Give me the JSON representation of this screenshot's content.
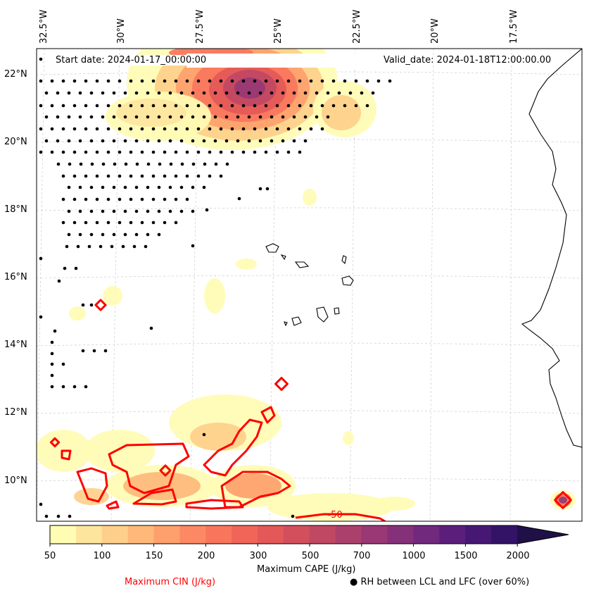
{
  "map": {
    "start_date": "Start date: 2024-01-17_00:00:00",
    "valid_date": "Valid_date: 2024-01-18T12:00:00.00",
    "lon_ticks": [
      "32.5°W",
      "30°W",
      "27.5°W",
      "25°W",
      "22.5°W",
      "20°W",
      "17.5°W"
    ],
    "lat_ticks": [
      "22°N",
      "20°N",
      "18°N",
      "16°N",
      "14°N",
      "12°N",
      "10°N"
    ],
    "contour_label": "-50",
    "colors": {
      "cin_contour": "#ff0000",
      "coastline": "#000000",
      "gridline": "#cccccc"
    }
  },
  "colorbar": {
    "title": "Maximum CAPE (J/kg)",
    "tick_labels": [
      "50",
      "100",
      "150",
      "200",
      "300",
      "500",
      "700",
      "1000",
      "1500",
      "2000"
    ],
    "colors": [
      "#fffcb4",
      "#fee59e",
      "#fecf8a",
      "#feb879",
      "#fea06d",
      "#fc8963",
      "#f8765c",
      "#f06558",
      "#e35858",
      "#d24f5c",
      "#c04863",
      "#ac406c",
      "#983874",
      "#853179",
      "#71297d",
      "#5b1f7b",
      "#461873",
      "#321366",
      "#1f1048"
    ]
  },
  "legend": {
    "cin_label": "Maximum CIN (J/kg)",
    "rh_label": "RH between LCL and LFC (over 60%)",
    "rh_marker": "●"
  }
}
